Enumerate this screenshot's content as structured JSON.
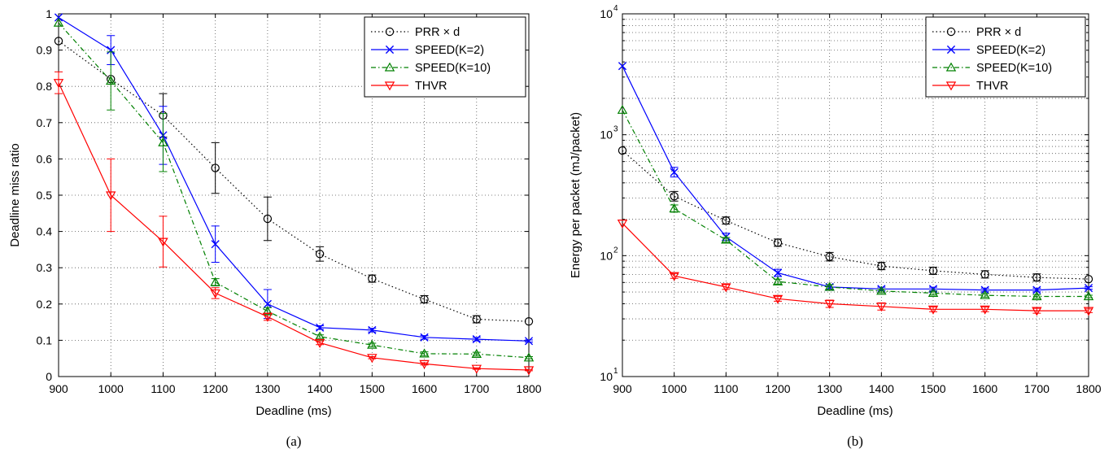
{
  "chart_data": [
    {
      "type": "line",
      "caption": "(a)",
      "xlabel": "Deadline (ms)",
      "ylabel": "Deadline miss ratio",
      "xlim": [
        900,
        1800
      ],
      "ylim": [
        0,
        1
      ],
      "yscale": "linear",
      "grid": true,
      "legend_position": "top-right",
      "x": [
        900,
        1000,
        1100,
        1200,
        1300,
        1400,
        1500,
        1600,
        1700,
        1800
      ],
      "x_tick_labels": [
        "900",
        "1000",
        "1100",
        "1200",
        "1300",
        "1400",
        "1500",
        "1600",
        "1700",
        "1800"
      ],
      "y_ticks": [
        0,
        0.1,
        0.2,
        0.3,
        0.4,
        0.5,
        0.6,
        0.7,
        0.8,
        0.9,
        1
      ],
      "y_tick_labels": [
        "0",
        "0.1",
        "0.2",
        "0.3",
        "0.4",
        "0.5",
        "0.6",
        "0.7",
        "0.8",
        "0.9",
        "1"
      ],
      "series": [
        {
          "name": "PRR × d",
          "color": "#000000",
          "marker": "circle",
          "line": "dotted",
          "values": [
            0.925,
            0.82,
            0.72,
            0.575,
            0.435,
            0.338,
            0.27,
            0.213,
            0.158,
            0.152
          ],
          "errors": [
            0,
            0,
            0.06,
            0.07,
            0.06,
            0.02,
            0.01,
            0.01,
            0.01,
            0
          ]
        },
        {
          "name": "SPEED(K=2)",
          "color": "#0000ff",
          "marker": "x",
          "line": "solid",
          "values": [
            0.99,
            0.9,
            0.665,
            0.365,
            0.2,
            0.135,
            0.128,
            0.108,
            0.103,
            0.098
          ],
          "errors": [
            0,
            0.04,
            0.08,
            0.05,
            0.04,
            0.005,
            0.005,
            0.005,
            0.005,
            0.003
          ]
        },
        {
          "name": "SPEED(K=10)",
          "color": "#008000",
          "marker": "triangle-up",
          "line": "dashdot",
          "values": [
            0.975,
            0.815,
            0.645,
            0.26,
            0.18,
            0.11,
            0.087,
            0.063,
            0.062,
            0.052
          ],
          "errors": [
            0,
            0.08,
            0.08,
            0.01,
            0.01,
            0.005,
            0.005,
            0.005,
            0.005,
            0.003
          ]
        },
        {
          "name": "THVR",
          "color": "#ff0000",
          "marker": "triangle-down",
          "line": "solid",
          "values": [
            0.81,
            0.5,
            0.372,
            0.23,
            0.165,
            0.093,
            0.052,
            0.035,
            0.022,
            0.018
          ],
          "errors": [
            0.03,
            0.1,
            0.07,
            0.015,
            0.01,
            0.005,
            0.003,
            0.003,
            0.002,
            0.002
          ]
        }
      ]
    },
    {
      "type": "line",
      "caption": "(b)",
      "xlabel": "Deadline (ms)",
      "ylabel": "Energy per packet (mJ/packet)",
      "xlim": [
        900,
        1800
      ],
      "ylim": [
        10,
        10000
      ],
      "yscale": "log",
      "grid": true,
      "legend_position": "top-right",
      "x": [
        900,
        1000,
        1100,
        1200,
        1300,
        1400,
        1500,
        1600,
        1700,
        1800
      ],
      "x_tick_labels": [
        "900",
        "1000",
        "1100",
        "1200",
        "1300",
        "1400",
        "1500",
        "1600",
        "1700",
        "1800"
      ],
      "y_ticks": [
        10,
        100,
        1000,
        10000
      ],
      "y_tick_base": "10",
      "y_tick_exponents": [
        "1",
        "2",
        "3",
        "4"
      ],
      "series": [
        {
          "name": "PRR × d",
          "color": "#000000",
          "marker": "circle",
          "line": "dotted",
          "values": [
            740,
            310,
            195,
            128,
            98,
            82,
            75,
            70,
            66,
            64
          ],
          "errors_log": [
            0,
            0.04,
            0.03,
            0.03,
            0.035,
            0.03,
            0.03,
            0.03,
            0.03,
            0
          ]
        },
        {
          "name": "SPEED(K=2)",
          "color": "#0000ff",
          "marker": "x",
          "line": "solid",
          "values": [
            3700,
            490,
            143,
            72,
            55,
            53,
            53,
            52,
            52,
            54
          ],
          "errors_log": [
            0,
            0.04,
            0.03,
            0.03,
            0.02,
            0.015,
            0.015,
            0.015,
            0.015,
            0.01
          ]
        },
        {
          "name": "SPEED(K=10)",
          "color": "#008000",
          "marker": "triangle-up",
          "line": "dashdot",
          "values": [
            1600,
            245,
            135,
            61,
            55,
            51,
            49,
            47,
            46,
            46
          ],
          "errors_log": [
            0,
            0.03,
            0.02,
            0.02,
            0.02,
            0.015,
            0.015,
            0.015,
            0.015,
            0.01
          ]
        },
        {
          "name": "THVR",
          "color": "#ff0000",
          "marker": "triangle-down",
          "line": "solid",
          "values": [
            185,
            68,
            55,
            44,
            40,
            38,
            36,
            36,
            35,
            35
          ],
          "errors_log": [
            0,
            0.02,
            0.02,
            0.02,
            0.03,
            0.03,
            0.02,
            0.02,
            0.02,
            0.015
          ]
        }
      ]
    }
  ]
}
